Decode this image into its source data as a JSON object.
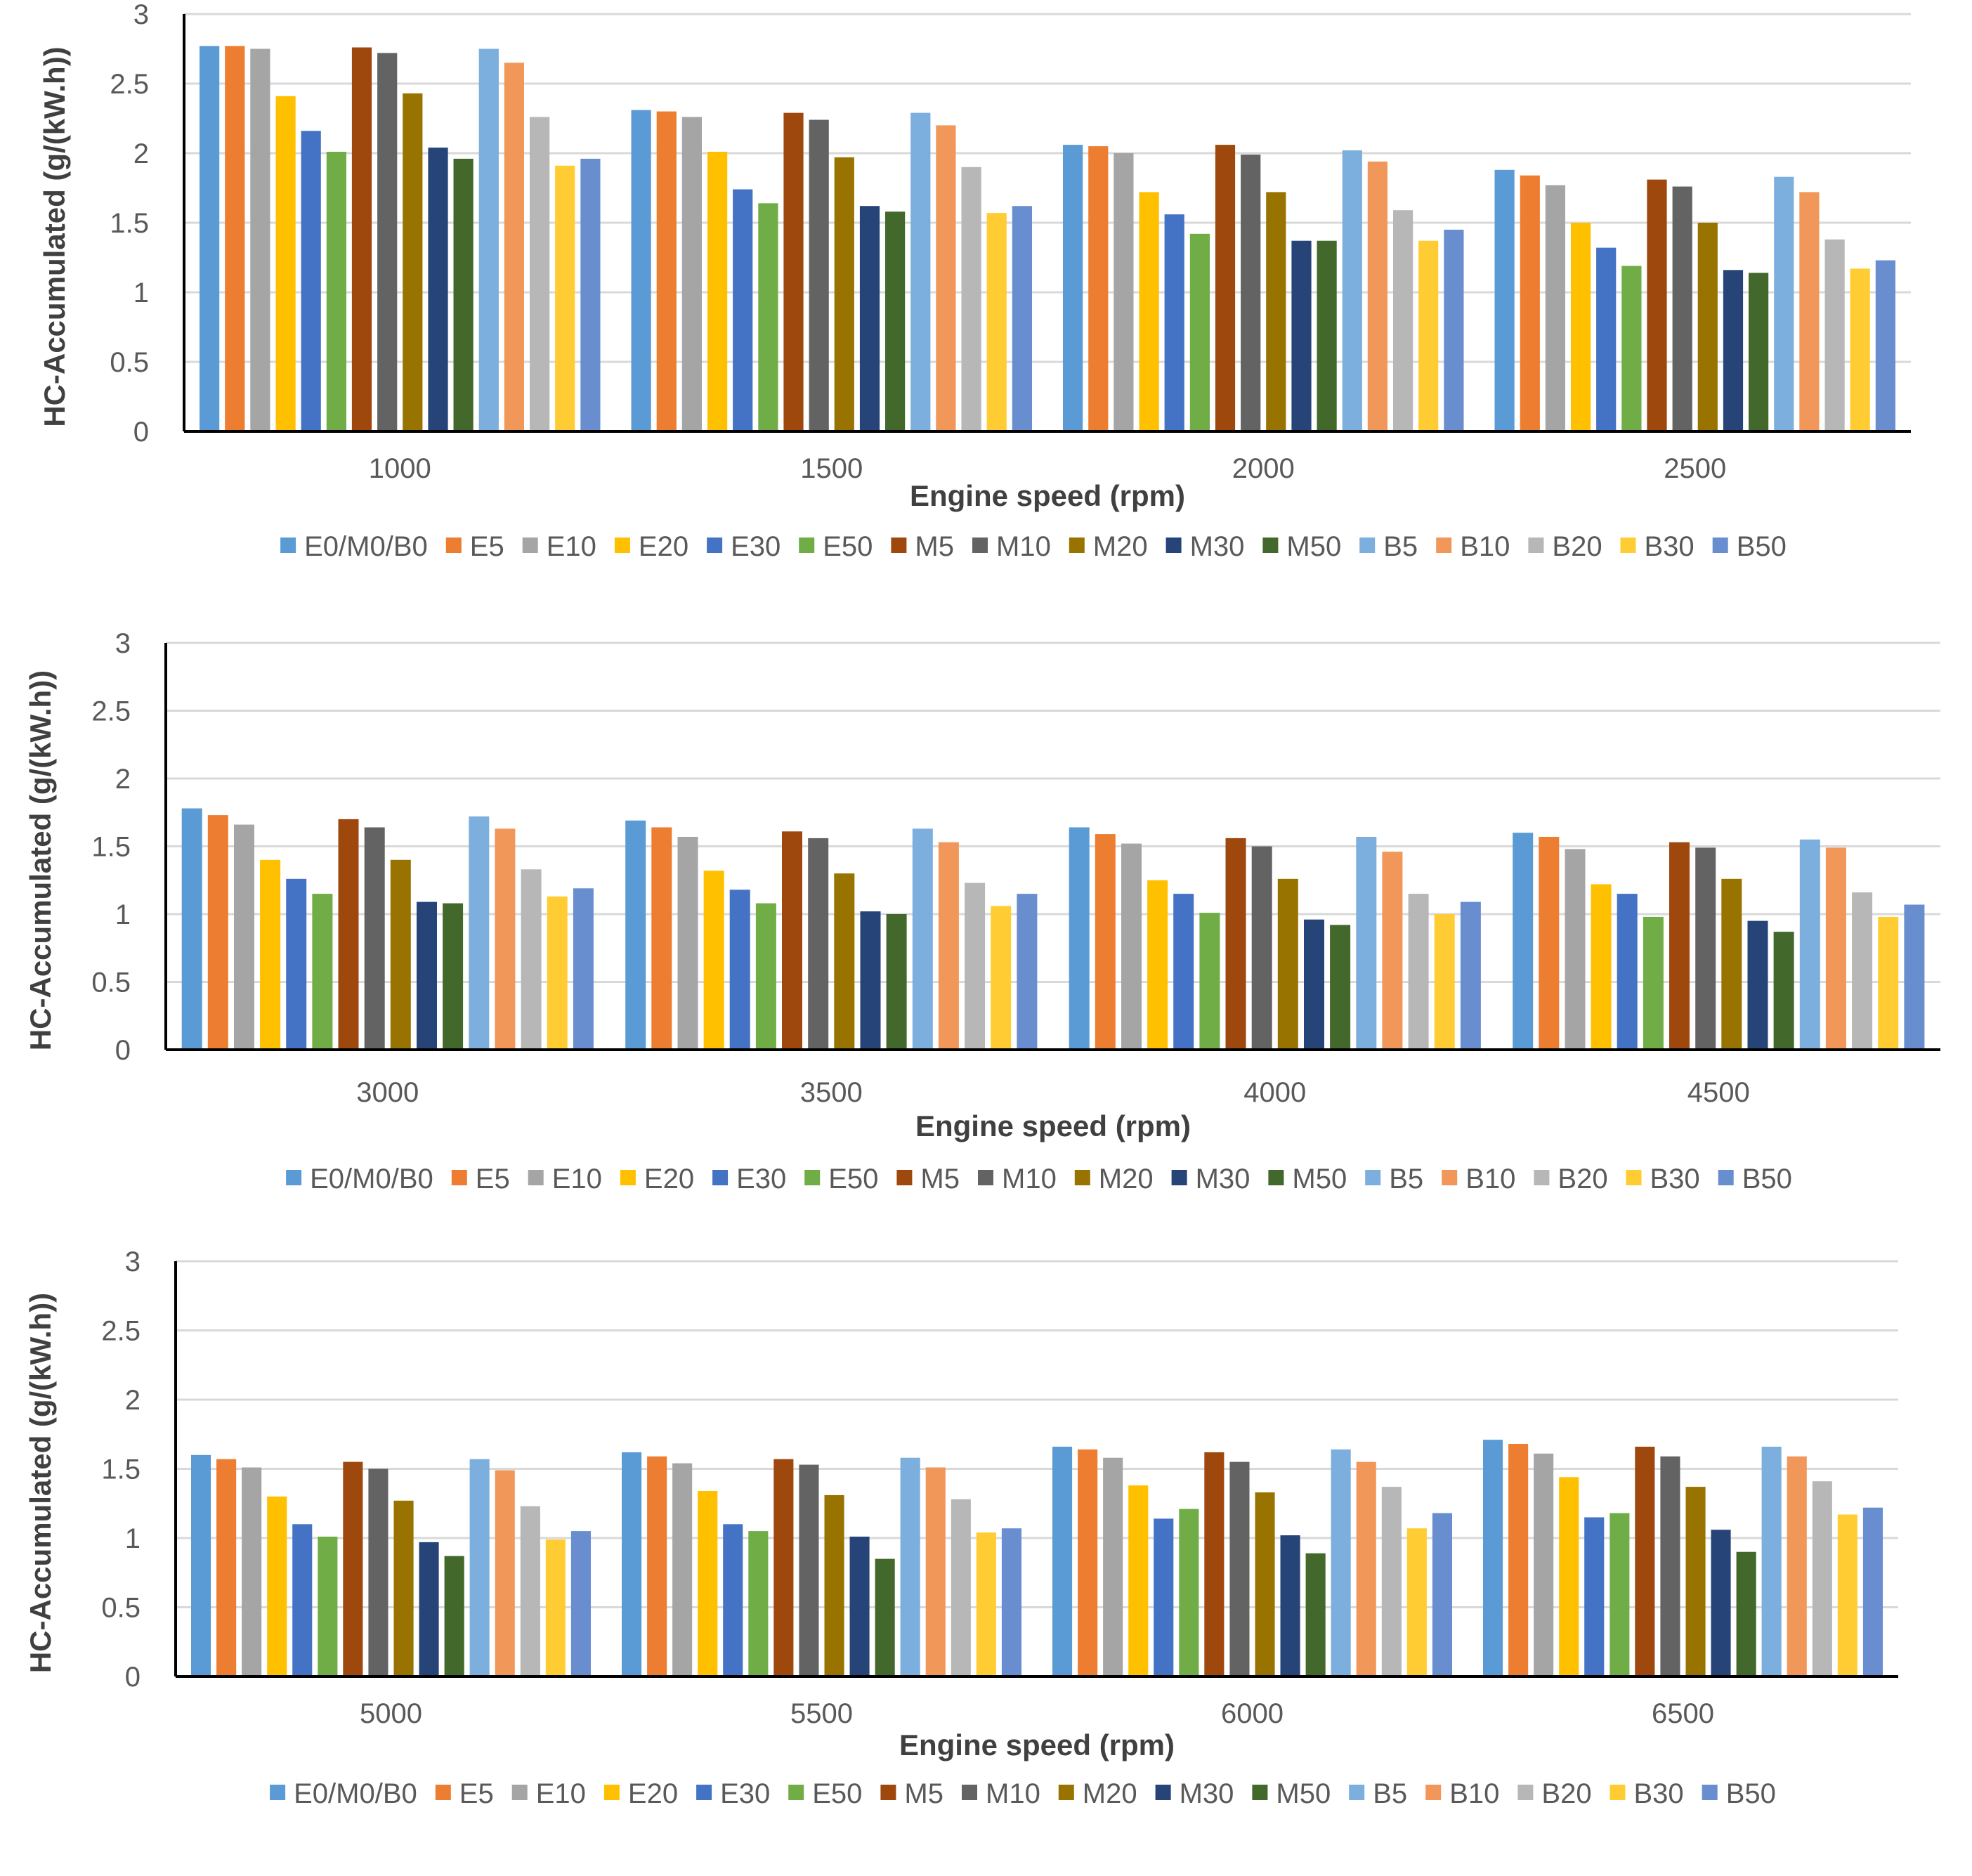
{
  "chart_data": [
    {
      "type": "bar",
      "title": "",
      "xlabel": "Engine speed (rpm)",
      "ylabel": "HC-Accumulated (g/(kW.h))",
      "ylim": [
        0,
        3
      ],
      "yticks": [
        "0",
        "0.5",
        "1",
        "1.5",
        "2",
        "2.5",
        "3"
      ],
      "grid": true,
      "legend_position": "bottom",
      "categories": [
        "1000",
        "1500",
        "2000",
        "2500"
      ],
      "series": [
        {
          "name": "E0/M0/B0",
          "color": "#5B9BD5",
          "values": [
            2.77,
            2.31,
            2.06,
            1.88
          ]
        },
        {
          "name": "E5",
          "color": "#ED7D31",
          "values": [
            2.77,
            2.3,
            2.05,
            1.84
          ]
        },
        {
          "name": "E10",
          "color": "#A5A5A5",
          "values": [
            2.75,
            2.26,
            2.0,
            1.77
          ]
        },
        {
          "name": "E20",
          "color": "#FFC000",
          "values": [
            2.41,
            2.01,
            1.72,
            1.5
          ]
        },
        {
          "name": "E30",
          "color": "#4472C4",
          "values": [
            2.16,
            1.74,
            1.56,
            1.32
          ]
        },
        {
          "name": "E50",
          "color": "#70AD47",
          "values": [
            2.01,
            1.64,
            1.42,
            1.19
          ]
        },
        {
          "name": "M5",
          "color": "#9E480E",
          "values": [
            2.76,
            2.29,
            2.06,
            1.81
          ]
        },
        {
          "name": "M10",
          "color": "#636363",
          "values": [
            2.72,
            2.24,
            1.99,
            1.76
          ]
        },
        {
          "name": "M20",
          "color": "#997300",
          "values": [
            2.43,
            1.97,
            1.72,
            1.5
          ]
        },
        {
          "name": "M30",
          "color": "#264478",
          "values": [
            2.04,
            1.62,
            1.37,
            1.16
          ]
        },
        {
          "name": "M50",
          "color": "#43682B",
          "values": [
            1.96,
            1.58,
            1.37,
            1.14
          ]
        },
        {
          "name": "B5",
          "color": "#7CAFDD",
          "values": [
            2.75,
            2.29,
            2.02,
            1.83
          ]
        },
        {
          "name": "B10",
          "color": "#F1975A",
          "values": [
            2.65,
            2.2,
            1.94,
            1.72
          ]
        },
        {
          "name": "B20",
          "color": "#B7B7B7",
          "values": [
            2.26,
            1.9,
            1.59,
            1.38
          ]
        },
        {
          "name": "B30",
          "color": "#FFCD33",
          "values": [
            1.91,
            1.57,
            1.37,
            1.17
          ]
        },
        {
          "name": "B50",
          "color": "#698ED0",
          "values": [
            1.96,
            1.62,
            1.45,
            1.23
          ]
        }
      ]
    },
    {
      "type": "bar",
      "title": "",
      "xlabel": "Engine speed (rpm)",
      "ylabel": "HC-Accumulated (g/(kW.h))",
      "ylim": [
        0,
        3
      ],
      "yticks": [
        "0",
        "0.5",
        "1",
        "1.5",
        "2",
        "2.5",
        "3"
      ],
      "grid": true,
      "legend_position": "bottom",
      "categories": [
        "3000",
        "3500",
        "4000",
        "4500"
      ],
      "series": [
        {
          "name": "E0/M0/B0",
          "color": "#5B9BD5",
          "values": [
            1.78,
            1.69,
            1.64,
            1.6
          ]
        },
        {
          "name": "E5",
          "color": "#ED7D31",
          "values": [
            1.73,
            1.64,
            1.59,
            1.57
          ]
        },
        {
          "name": "E10",
          "color": "#A5A5A5",
          "values": [
            1.66,
            1.57,
            1.52,
            1.48
          ]
        },
        {
          "name": "E20",
          "color": "#FFC000",
          "values": [
            1.4,
            1.32,
            1.25,
            1.22
          ]
        },
        {
          "name": "E30",
          "color": "#4472C4",
          "values": [
            1.26,
            1.18,
            1.15,
            1.15
          ]
        },
        {
          "name": "E50",
          "color": "#70AD47",
          "values": [
            1.15,
            1.08,
            1.01,
            0.98
          ]
        },
        {
          "name": "M5",
          "color": "#9E480E",
          "values": [
            1.7,
            1.61,
            1.56,
            1.53
          ]
        },
        {
          "name": "M10",
          "color": "#636363",
          "values": [
            1.64,
            1.56,
            1.5,
            1.49
          ]
        },
        {
          "name": "M20",
          "color": "#997300",
          "values": [
            1.4,
            1.3,
            1.26,
            1.26
          ]
        },
        {
          "name": "M30",
          "color": "#264478",
          "values": [
            1.09,
            1.02,
            0.96,
            0.95
          ]
        },
        {
          "name": "M50",
          "color": "#43682B",
          "values": [
            1.08,
            1.0,
            0.92,
            0.87
          ]
        },
        {
          "name": "B5",
          "color": "#7CAFDD",
          "values": [
            1.72,
            1.63,
            1.57,
            1.55
          ]
        },
        {
          "name": "B10",
          "color": "#F1975A",
          "values": [
            1.63,
            1.53,
            1.46,
            1.49
          ]
        },
        {
          "name": "B20",
          "color": "#B7B7B7",
          "values": [
            1.33,
            1.23,
            1.15,
            1.16
          ]
        },
        {
          "name": "B30",
          "color": "#FFCD33",
          "values": [
            1.13,
            1.06,
            1.0,
            0.98
          ]
        },
        {
          "name": "B50",
          "color": "#698ED0",
          "values": [
            1.19,
            1.15,
            1.09,
            1.07
          ]
        }
      ]
    },
    {
      "type": "bar",
      "title": "",
      "xlabel": "Engine speed (rpm)",
      "ylabel": "HC-Accumulated (g/(kW.h))",
      "ylim": [
        0,
        3
      ],
      "yticks": [
        "0",
        "0.5",
        "1",
        "1.5",
        "2",
        "2.5",
        "3"
      ],
      "grid": true,
      "legend_position": "bottom",
      "categories": [
        "5000",
        "5500",
        "6000",
        "6500"
      ],
      "series": [
        {
          "name": "E0/M0/B0",
          "color": "#5B9BD5",
          "values": [
            1.6,
            1.62,
            1.66,
            1.71
          ]
        },
        {
          "name": "E5",
          "color": "#ED7D31",
          "values": [
            1.57,
            1.59,
            1.64,
            1.68
          ]
        },
        {
          "name": "E10",
          "color": "#A5A5A5",
          "values": [
            1.51,
            1.54,
            1.58,
            1.61
          ]
        },
        {
          "name": "E20",
          "color": "#FFC000",
          "values": [
            1.3,
            1.34,
            1.38,
            1.44
          ]
        },
        {
          "name": "E30",
          "color": "#4472C4",
          "values": [
            1.1,
            1.1,
            1.14,
            1.15
          ]
        },
        {
          "name": "E50",
          "color": "#70AD47",
          "values": [
            1.01,
            1.05,
            1.21,
            1.18
          ]
        },
        {
          "name": "M5",
          "color": "#9E480E",
          "values": [
            1.55,
            1.57,
            1.62,
            1.66
          ]
        },
        {
          "name": "M10",
          "color": "#636363",
          "values": [
            1.5,
            1.53,
            1.55,
            1.59
          ]
        },
        {
          "name": "M20",
          "color": "#997300",
          "values": [
            1.27,
            1.31,
            1.33,
            1.37
          ]
        },
        {
          "name": "M30",
          "color": "#264478",
          "values": [
            0.97,
            1.01,
            1.02,
            1.06
          ]
        },
        {
          "name": "M50",
          "color": "#43682B",
          "values": [
            0.87,
            0.85,
            0.89,
            0.9
          ]
        },
        {
          "name": "B5",
          "color": "#7CAFDD",
          "values": [
            1.57,
            1.58,
            1.64,
            1.66
          ]
        },
        {
          "name": "B10",
          "color": "#F1975A",
          "values": [
            1.49,
            1.51,
            1.55,
            1.59
          ]
        },
        {
          "name": "B20",
          "color": "#B7B7B7",
          "values": [
            1.23,
            1.28,
            1.37,
            1.41
          ]
        },
        {
          "name": "B30",
          "color": "#FFCD33",
          "values": [
            0.99,
            1.04,
            1.07,
            1.17
          ]
        },
        {
          "name": "B50",
          "color": "#698ED0",
          "values": [
            1.05,
            1.07,
            1.18,
            1.22
          ]
        }
      ]
    }
  ]
}
